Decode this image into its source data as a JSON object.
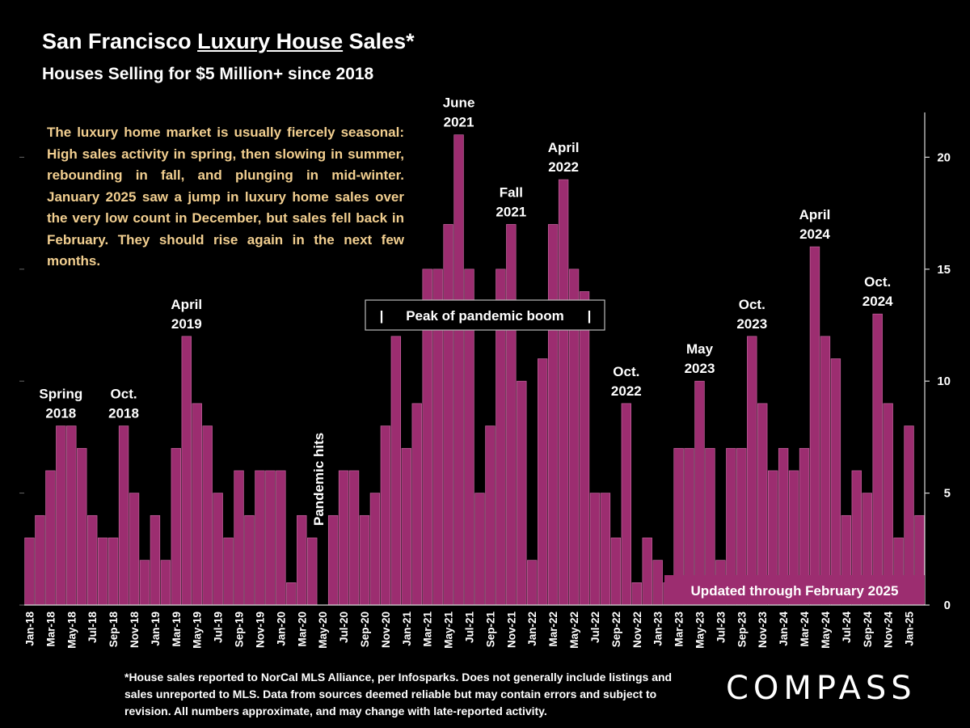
{
  "header": {
    "title_part1": "San Francisco ",
    "title_underlined": "Luxury House",
    "title_part2": " Sales*",
    "subtitle": "Houses Selling for $5 Million+ since 2018"
  },
  "description": "The luxury home market is usually fiercely seasonal: High sales activity in spring, then slowing in summer, rebounding in fall, and plunging in mid-winter. January 2025 saw a jump in luxury home sales over the very low count in December, but sales fell back in February. They should rise again in the next few months.",
  "footnote": "*House sales reported to NorCal MLS Alliance, per Infosparks. Does not generally include listings and sales unreported to MLS. Data from sources deemed reliable but may contain errors and subject to revision. All numbers approximate, and may change with late-reported activity.",
  "logo": "COMPASS",
  "colors": {
    "bar": "#9c2d70",
    "bar_edge": "#cf6fa8",
    "description_text": "#f2cf90",
    "updated_box": "#9c2d70"
  },
  "chart_data": {
    "type": "bar",
    "ylim": [
      0,
      22
    ],
    "y_ticks": [
      0,
      5,
      10,
      15,
      20
    ],
    "y_tick_labels": [
      "0",
      "5",
      "10",
      "15",
      "20"
    ],
    "categories": [
      "Jan-18",
      "Feb-18",
      "Mar-18",
      "Apr-18",
      "May-18",
      "Jun-18",
      "Jul-18",
      "Aug-18",
      "Sep-18",
      "Oct-18",
      "Nov-18",
      "Dec-18",
      "Jan-19",
      "Feb-19",
      "Mar-19",
      "Apr-19",
      "May-19",
      "Jun-19",
      "Jul-19",
      "Aug-19",
      "Sep-19",
      "Oct-19",
      "Nov-19",
      "Dec-19",
      "Jan-20",
      "Feb-20",
      "Mar-20",
      "Apr-20",
      "May-20",
      "Jun-20",
      "Jul-20",
      "Aug-20",
      "Sep-20",
      "Oct-20",
      "Nov-20",
      "Dec-20",
      "Jan-21",
      "Feb-21",
      "Mar-21",
      "Apr-21",
      "May-21",
      "Jun-21",
      "Jul-21",
      "Aug-21",
      "Sep-21",
      "Oct-21",
      "Nov-21",
      "Dec-21",
      "Jan-22",
      "Feb-22",
      "Mar-22",
      "Apr-22",
      "May-22",
      "Jun-22",
      "Jul-22",
      "Aug-22",
      "Sep-22",
      "Oct-22",
      "Nov-22",
      "Dec-22",
      "Jan-23",
      "Feb-23",
      "Mar-23",
      "Apr-23",
      "May-23",
      "Jun-23",
      "Jul-23",
      "Aug-23",
      "Sep-23",
      "Oct-23",
      "Nov-23",
      "Dec-23",
      "Jan-24",
      "Feb-24",
      "Mar-24",
      "Apr-24",
      "May-24",
      "Jun-24",
      "Jul-24",
      "Aug-24",
      "Sep-24",
      "Oct-24",
      "Nov-24",
      "Dec-24",
      "Jan-25",
      "Feb-25"
    ],
    "x_tick_labels": [
      "Jan-18",
      "Mar-18",
      "May-18",
      "Jul-18",
      "Sep-18",
      "Nov-18",
      "Jan-19",
      "Mar-19",
      "May-19",
      "Jul-19",
      "Sep-19",
      "Nov-19",
      "Jan-20",
      "Mar-20",
      "May-20",
      "Jul-20",
      "Sep-20",
      "Nov-20",
      "Jan-21",
      "Mar-21",
      "May-21",
      "Jul-21",
      "Sep-21",
      "Nov-21",
      "Jan-22",
      "Mar-22",
      "May-22",
      "Jul-22",
      "Sep-22",
      "Nov-22",
      "Jan-23",
      "Mar-23",
      "May-23",
      "Jul-23",
      "Sep-23",
      "Nov-23",
      "Jan-24",
      "Mar-24",
      "May-24",
      "Jul-24",
      "Sep-24",
      "Nov-24",
      "Jan-25"
    ],
    "values": [
      3,
      4,
      6,
      8,
      8,
      7,
      4,
      3,
      3,
      8,
      5,
      2,
      4,
      2,
      7,
      12,
      9,
      8,
      5,
      3,
      6,
      4,
      6,
      6,
      6,
      1,
      4,
      3,
      0,
      4,
      6,
      6,
      4,
      5,
      8,
      12,
      7,
      9,
      15,
      15,
      17,
      21,
      15,
      5,
      8,
      15,
      17,
      10,
      2,
      11,
      17,
      19,
      15,
      14,
      5,
      5,
      3,
      9,
      1,
      3,
      2,
      1,
      7,
      7,
      10,
      7,
      2,
      7,
      7,
      12,
      9,
      6,
      7,
      6,
      7,
      16,
      12,
      11,
      4,
      6,
      5,
      13,
      9,
      3,
      8,
      4
    ],
    "annotations": [
      {
        "id": "spring-2018",
        "lines": [
          "Spring",
          "2018"
        ],
        "category": "Apr-18",
        "value": 8
      },
      {
        "id": "oct-2018",
        "lines": [
          "Oct.",
          "2018"
        ],
        "category": "Oct-18",
        "value": 8
      },
      {
        "id": "april-2019",
        "lines": [
          "April",
          "2019"
        ],
        "category": "Apr-19",
        "value": 12
      },
      {
        "id": "june-2021",
        "lines": [
          "June",
          "2021"
        ],
        "category": "Jun-21",
        "value": 21
      },
      {
        "id": "fall-2021",
        "lines": [
          "Fall",
          "2021"
        ],
        "category": "Nov-21",
        "value": 17
      },
      {
        "id": "april-2022",
        "lines": [
          "April",
          "2022"
        ],
        "category": "Apr-22",
        "value": 19
      },
      {
        "id": "oct-2022",
        "lines": [
          "Oct.",
          "2022"
        ],
        "category": "Oct-22",
        "value": 9
      },
      {
        "id": "may-2023",
        "lines": [
          "May",
          "2023"
        ],
        "category": "May-23",
        "value": 10
      },
      {
        "id": "oct-2023",
        "lines": [
          "Oct.",
          "2023"
        ],
        "category": "Oct-23",
        "value": 12
      },
      {
        "id": "april-2024",
        "lines": [
          "April",
          "2024"
        ],
        "category": "Apr-24",
        "value": 16
      },
      {
        "id": "oct-2024",
        "lines": [
          "Oct.",
          "2024"
        ],
        "category": "Oct-24",
        "value": 13
      }
    ],
    "pandemic_label": "Pandemic hits",
    "peak_label": "Peak of pandemic boom",
    "peak_bracket_left": "|",
    "peak_bracket_right": "|",
    "updated_label": "Updated through February 2025"
  }
}
